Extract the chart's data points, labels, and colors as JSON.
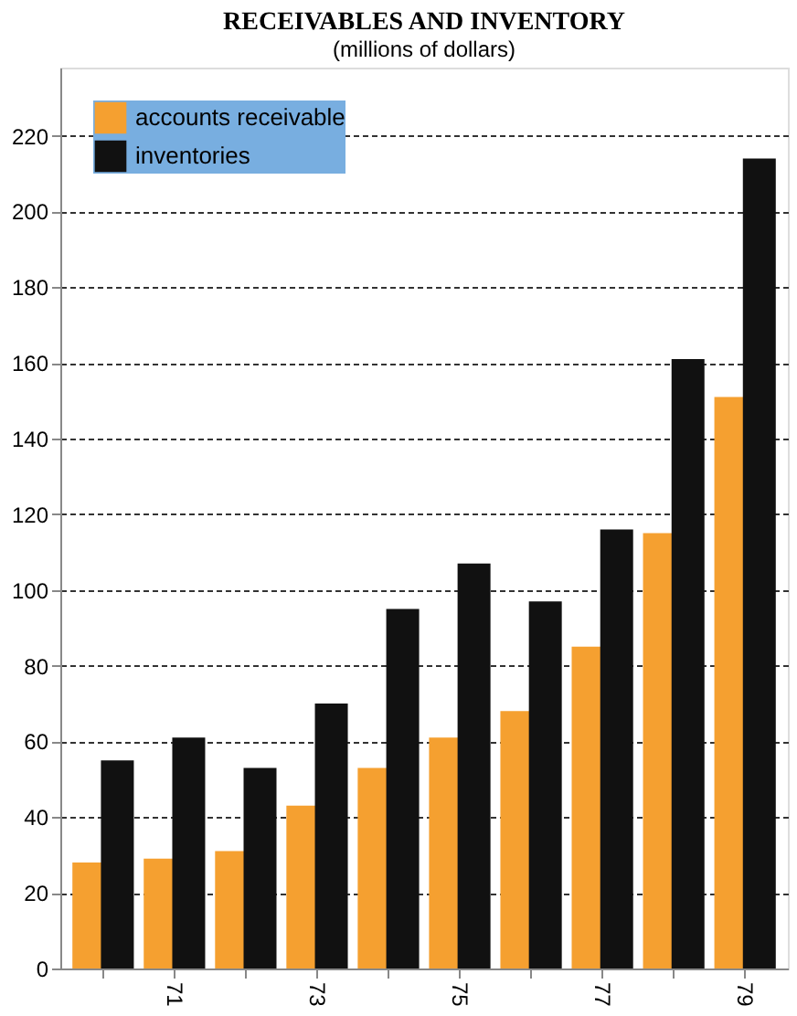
{
  "chart_data": {
    "type": "bar",
    "title": "RECEIVABLES AND INVENTORY",
    "subtitle": "(millions of dollars)",
    "categories": [
      null,
      "71",
      null,
      "73",
      null,
      "75",
      null,
      "77",
      null,
      "79"
    ],
    "series": [
      {
        "name": "accounts receivable",
        "color": "#f5a030",
        "values": [
          28,
          29,
          31,
          43,
          53,
          61,
          68,
          85,
          115,
          151
        ]
      },
      {
        "name": "inventories",
        "color": "#111111",
        "values": [
          55,
          61,
          53,
          70,
          95,
          107,
          97,
          116,
          161,
          214
        ]
      }
    ],
    "ylim": [
      0,
      238
    ],
    "yticks": [
      0,
      20,
      40,
      60,
      80,
      100,
      120,
      140,
      160,
      180,
      200,
      220
    ],
    "grid": "y",
    "legend": "top left"
  }
}
